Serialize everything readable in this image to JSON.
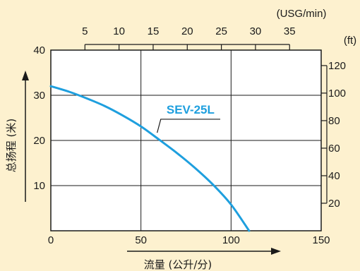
{
  "colors": {
    "background": "#fdf1cf",
    "plot_background": "#ffffff",
    "grid": "#1a1a1a",
    "curve": "#1e9fde",
    "text": "#1a1a1a"
  },
  "chart_data": {
    "type": "line",
    "title": "",
    "xlabel": "流量 (公升/分)",
    "ylabel": "总扬程 (米)",
    "xlim": [
      0,
      150
    ],
    "ylim": [
      0,
      40
    ],
    "x_ticks": [
      0,
      50,
      100,
      150
    ],
    "y_ticks": [
      10,
      20,
      30,
      40
    ],
    "grid": true,
    "secondary_x": {
      "unit": "(USG/min)",
      "ticks": [
        5,
        10,
        15,
        20,
        25,
        30,
        35
      ]
    },
    "secondary_y": {
      "unit": "(ft)",
      "ticks": [
        20,
        40,
        60,
        80,
        100,
        120
      ]
    },
    "series": [
      {
        "name": "SEV-25L",
        "color": "#1e9fde",
        "x": [
          0,
          10,
          20,
          30,
          40,
          50,
          60,
          70,
          80,
          90,
          100,
          110
        ],
        "y": [
          32,
          30.8,
          29.3,
          27.6,
          25.5,
          23.1,
          20.2,
          17.2,
          13.9,
          10.2,
          5.8,
          0
        ]
      }
    ]
  }
}
